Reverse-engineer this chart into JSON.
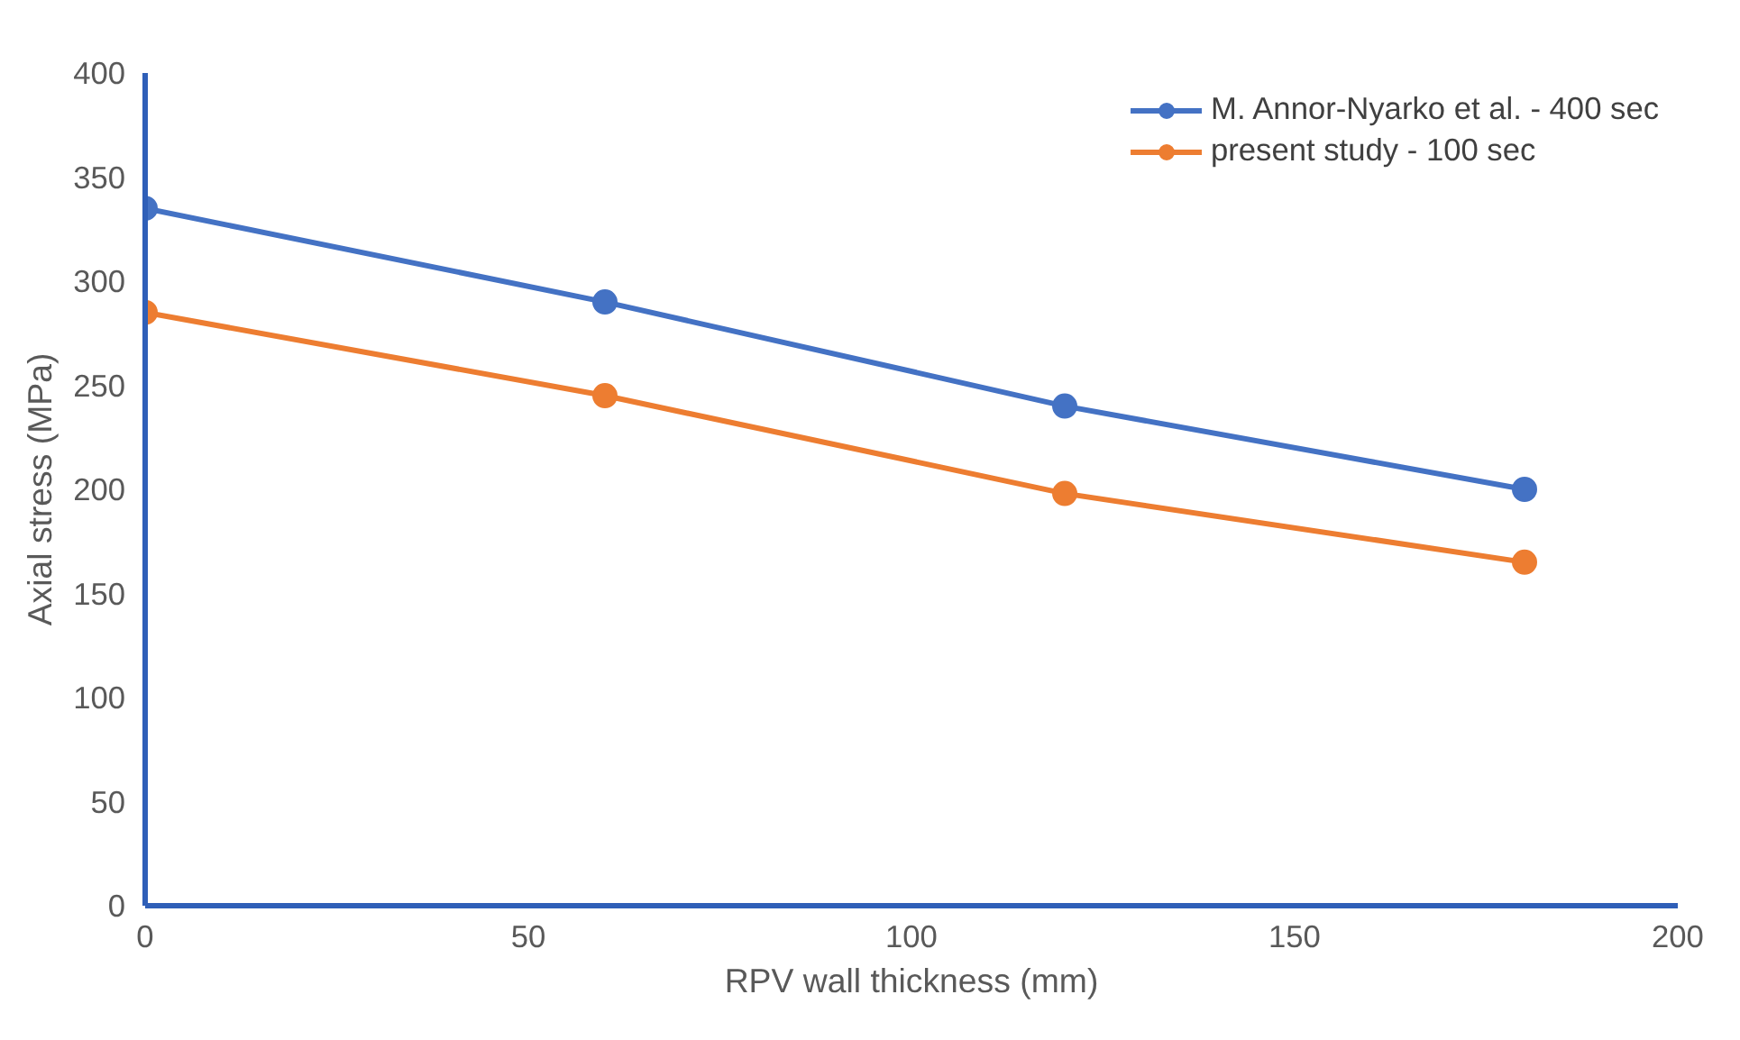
{
  "chart_data": {
    "type": "line",
    "xlabel": "RPV wall thickness (mm)",
    "ylabel": "Axial stress (MPa)",
    "x": [
      0,
      60,
      120,
      180
    ],
    "series": [
      {
        "name": "M. Annor-Nyarko et al. - 400 sec",
        "color": "#4472c4",
        "values": [
          335,
          290,
          240,
          200
        ]
      },
      {
        "name": "present study - 100 sec",
        "color": "#ed7d31",
        "values": [
          285,
          245,
          198,
          165
        ]
      }
    ],
    "xlim": [
      0,
      200
    ],
    "xticks": [
      0,
      50,
      100,
      150,
      200
    ],
    "ylim": [
      0,
      400
    ],
    "yticks": [
      0,
      50,
      100,
      150,
      200,
      250,
      300,
      350,
      400
    ],
    "grid": false,
    "legend": "top right",
    "marker": "circle",
    "line_style": "solid"
  }
}
